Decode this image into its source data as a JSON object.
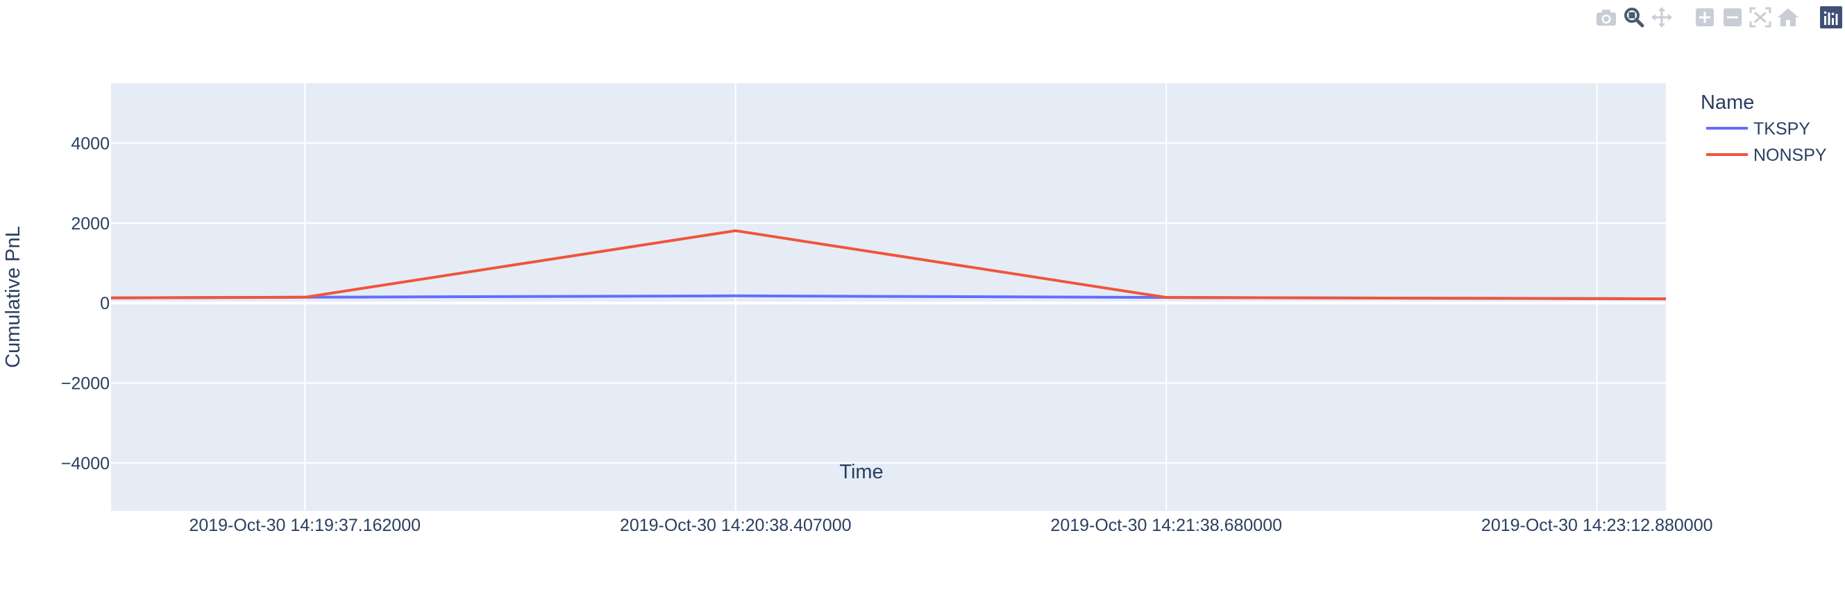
{
  "modebar": {
    "buttons": [
      {
        "name": "camera-icon",
        "group": 0
      },
      {
        "name": "zoom-icon",
        "group": 0,
        "active": true
      },
      {
        "name": "pan-icon",
        "group": 0
      },
      {
        "name": "zoom-in-icon",
        "group": 1
      },
      {
        "name": "zoom-out-icon",
        "group": 1
      },
      {
        "name": "autoscale-icon",
        "group": 1
      },
      {
        "name": "reset-axes-icon",
        "group": 1
      },
      {
        "name": "plotly-logo-icon",
        "group": 2
      }
    ],
    "inactive_color": "#c8cdd6",
    "active_color": "#4d5a6e",
    "logo_color": "#3f4f75"
  },
  "chart_data": {
    "type": "line",
    "xlabel": "Time",
    "ylabel": "Cumulative PnL",
    "ylim": [
      -5200,
      5500
    ],
    "y_ticks": [
      {
        "value": 4000,
        "label": "4000"
      },
      {
        "value": 2000,
        "label": "2000"
      },
      {
        "value": 0,
        "label": "0"
      },
      {
        "value": -2000,
        "label": "−2000"
      },
      {
        "value": -4000,
        "label": "−4000"
      }
    ],
    "x_ticks": [
      "2019-Oct-30 14:19:37.162000",
      "2019-Oct-30 14:20:38.407000",
      "2019-Oct-30 14:21:38.680000",
      "2019-Oct-30 14:23:12.880000"
    ],
    "x_range_index": [
      -0.45,
      3.16
    ],
    "grid": true,
    "plot_bgcolor": "#e5ecf6",
    "legend": {
      "title": "Name",
      "placement": "right"
    },
    "series": [
      {
        "name": "TKSPY",
        "color": "#636efa",
        "points": [
          {
            "x": -0.45,
            "y": 130
          },
          {
            "x": 0,
            "y": 145
          },
          {
            "x": 1,
            "y": 180
          },
          {
            "x": 2,
            "y": 140
          },
          {
            "x": 3,
            "y": 110
          },
          {
            "x": 3.16,
            "y": 105
          }
        ]
      },
      {
        "name": "NONSPY",
        "color": "#ef553b",
        "points": [
          {
            "x": -0.45,
            "y": 130
          },
          {
            "x": 0,
            "y": 145
          },
          {
            "x": 1,
            "y": 1810
          },
          {
            "x": 2,
            "y": 140
          },
          {
            "x": 3,
            "y": 110
          },
          {
            "x": 3.16,
            "y": 105
          }
        ]
      }
    ]
  }
}
